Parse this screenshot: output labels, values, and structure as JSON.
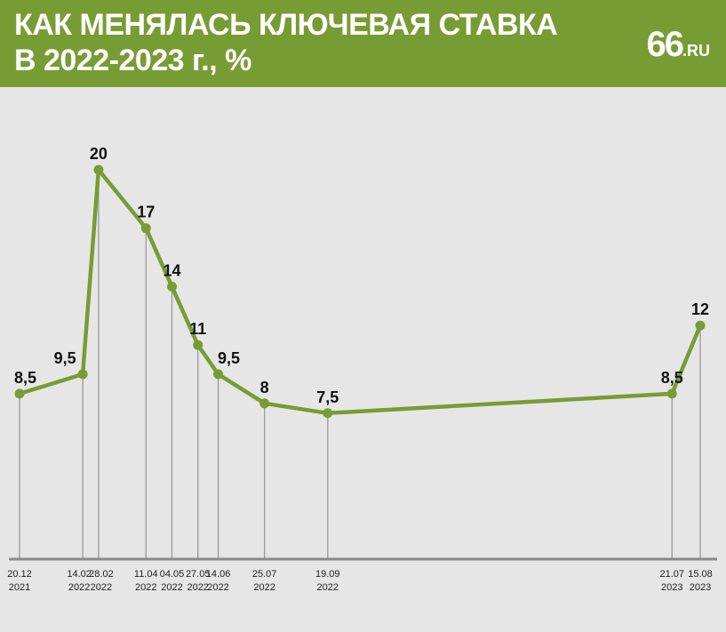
{
  "header": {
    "title_line1": "КАК МЕНЯЛАСЬ КЛЮЧЕВАЯ СТАВКА",
    "title_line2": "В 2022-2023 г., %",
    "logo_number": "66",
    "logo_domain": ".RU"
  },
  "colors": {
    "header_bg": "#789c34",
    "line": "#789c34",
    "background": "#e6e6e6",
    "dropline": "#9a9a9a",
    "axis": "#8a8a8a"
  },
  "chart_data": {
    "type": "line",
    "x": [
      "2021-12-20",
      "2022-02-14",
      "2022-02-28",
      "2022-04-11",
      "2022-05-04",
      "2022-05-27",
      "2022-06-14",
      "2022-07-25",
      "2022-09-19",
      "2023-07-21",
      "2023-08-15"
    ],
    "tick_labels": [
      [
        "20.12",
        "2021"
      ],
      [
        "14.02",
        "2022"
      ],
      [
        "28.02",
        "2022"
      ],
      [
        "11.04",
        "2022"
      ],
      [
        "04.05",
        "2022"
      ],
      [
        "27.05",
        "2022"
      ],
      [
        "14.06",
        "2022"
      ],
      [
        "25.07",
        "2022"
      ],
      [
        "19.09",
        "2022"
      ],
      [
        "21.07",
        "2023"
      ],
      [
        "15.08",
        "2023"
      ]
    ],
    "values": [
      8.5,
      9.5,
      20,
      17,
      14,
      11,
      9.5,
      8,
      7.5,
      8.5,
      12
    ],
    "value_labels": [
      "8,5",
      "9,5",
      "20",
      "17",
      "14",
      "11",
      "9,5",
      "8",
      "7,5",
      "8,5",
      "12"
    ],
    "title": "КАК МЕНЯЛАСЬ КЛЮЧЕВАЯ СТАВКА В 2022-2023 г., %",
    "xlabel": "",
    "ylabel": "",
    "ylim": [
      0,
      20
    ],
    "grid": false,
    "legend": "none"
  }
}
